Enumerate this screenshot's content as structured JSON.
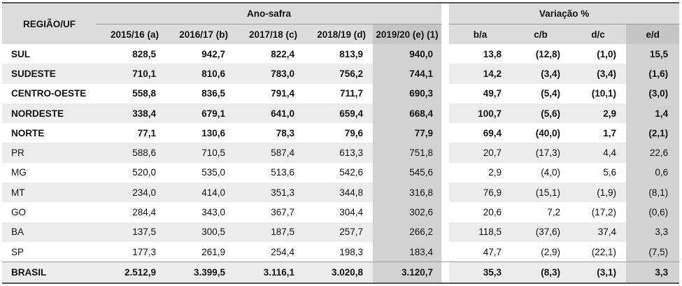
{
  "header": {
    "region": "REGIÃO/UF",
    "group_safra": "Ano-safra",
    "group_var": "Variação %",
    "cols": [
      "2015/16 (a)",
      "2016/17 (b)",
      "2017/18 (c)",
      "2018/19 (d)",
      "2019/20 (e) (1)",
      "b/a",
      "c/b",
      "d/c",
      "e/d"
    ]
  },
  "rows": [
    {
      "label": "SUL",
      "v": [
        "828,5",
        "942,7",
        "822,4",
        "813,9",
        "940,0",
        "13,8",
        "(12,8)",
        "(1,0)",
        "15,5"
      ]
    },
    {
      "label": "SUDESTE",
      "v": [
        "710,1",
        "810,6",
        "783,0",
        "756,2",
        "744,1",
        "14,2",
        "(3,4)",
        "(3,4)",
        "(1,6)"
      ]
    },
    {
      "label": "CENTRO-OESTE",
      "v": [
        "558,8",
        "836,5",
        "791,4",
        "711,7",
        "690,3",
        "49,7",
        "(5,4)",
        "(10,1)",
        "(3,0)"
      ]
    },
    {
      "label": "NORDESTE",
      "v": [
        "338,4",
        "679,1",
        "641,0",
        "659,4",
        "668,4",
        "100,7",
        "(5,6)",
        "2,9",
        "1,4"
      ]
    },
    {
      "label": "NORTE",
      "v": [
        "77,1",
        "130,6",
        "78,3",
        "79,6",
        "77,9",
        "69,4",
        "(40,0)",
        "1,7",
        "(2,1)"
      ]
    },
    {
      "label": "PR",
      "v": [
        "588,6",
        "710,5",
        "587,4",
        "613,3",
        "751,8",
        "20,7",
        "(17,3)",
        "4,4",
        "22,6"
      ]
    },
    {
      "label": "MG",
      "v": [
        "520,0",
        "535,0",
        "513,6",
        "542,6",
        "545,6",
        "2,9",
        "(4,0)",
        "5,6",
        "0,6"
      ]
    },
    {
      "label": "MT",
      "v": [
        "234,0",
        "414,0",
        "351,3",
        "344,8",
        "316,8",
        "76,9",
        "(15,1)",
        "(1,9)",
        "(8,1)"
      ]
    },
    {
      "label": "GO",
      "v": [
        "284,4",
        "343,0",
        "367,7",
        "304,4",
        "302,6",
        "20,6",
        "7,2",
        "(17,2)",
        "(0,6)"
      ]
    },
    {
      "label": "BA",
      "v": [
        "137,5",
        "300,5",
        "187,5",
        "257,7",
        "266,2",
        "118,5",
        "(37,6)",
        "37,4",
        "3,3"
      ]
    },
    {
      "label": "SP",
      "v": [
        "177,3",
        "261,9",
        "254,4",
        "198,3",
        "183,4",
        "47,7",
        "(2,9)",
        "(22,1)",
        "(7,5)"
      ]
    },
    {
      "label": "BRASIL",
      "v": [
        "2.512,9",
        "3.399,5",
        "3.116,1",
        "3.020,8",
        "3.120,7",
        "35,3",
        "(8,3)",
        "(3,1)",
        "3,3"
      ]
    }
  ]
}
